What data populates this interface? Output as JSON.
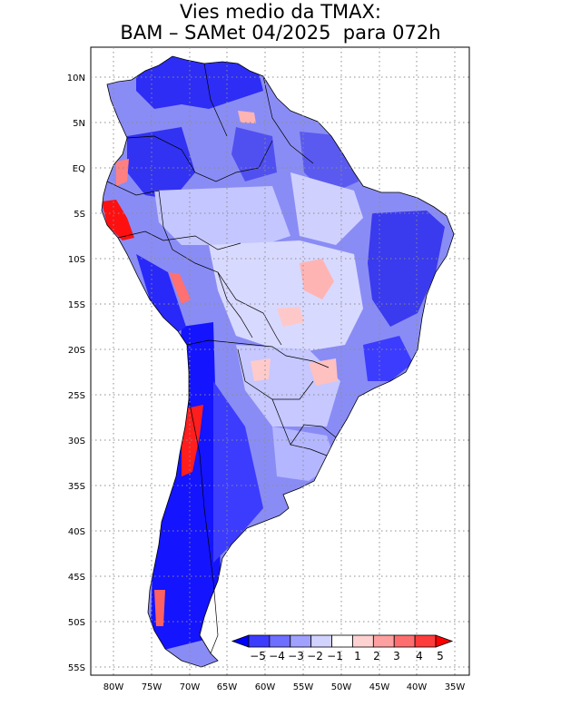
{
  "title": {
    "line1": "Vies medio da TMAX:",
    "line2": "BAM – SAMet 04/2025  para 072h"
  },
  "axes": {
    "lat_ticks": [
      "10N",
      "5N",
      "EQ",
      "5S",
      "10S",
      "15S",
      "20S",
      "25S",
      "30S",
      "35S",
      "40S",
      "45S",
      "50S",
      "55S"
    ],
    "lon_ticks": [
      "80W",
      "75W",
      "70W",
      "65W",
      "60W",
      "55W",
      "50W",
      "45W",
      "40W",
      "35W"
    ],
    "lon_range": [
      -83,
      -34
    ],
    "lat_range": [
      -56,
      13
    ],
    "grid": "dotted"
  },
  "colorbar": {
    "labels": [
      "−5",
      "−4",
      "−3",
      "−2",
      "−1",
      "1",
      "2",
      "3",
      "4",
      "5"
    ],
    "colors": [
      "#0000ff",
      "#3c3cff",
      "#6e6eff",
      "#a0a0ff",
      "#d2d2ff",
      "#ffffff",
      "#ffd2d2",
      "#ffa0a0",
      "#ff6e6e",
      "#ff3c3c",
      "#ff0000"
    ],
    "placement": "bottom-right"
  },
  "colors": {
    "land_dominant": "#8a8cf5",
    "ocean": "#ffffff",
    "border": "#000000"
  }
}
